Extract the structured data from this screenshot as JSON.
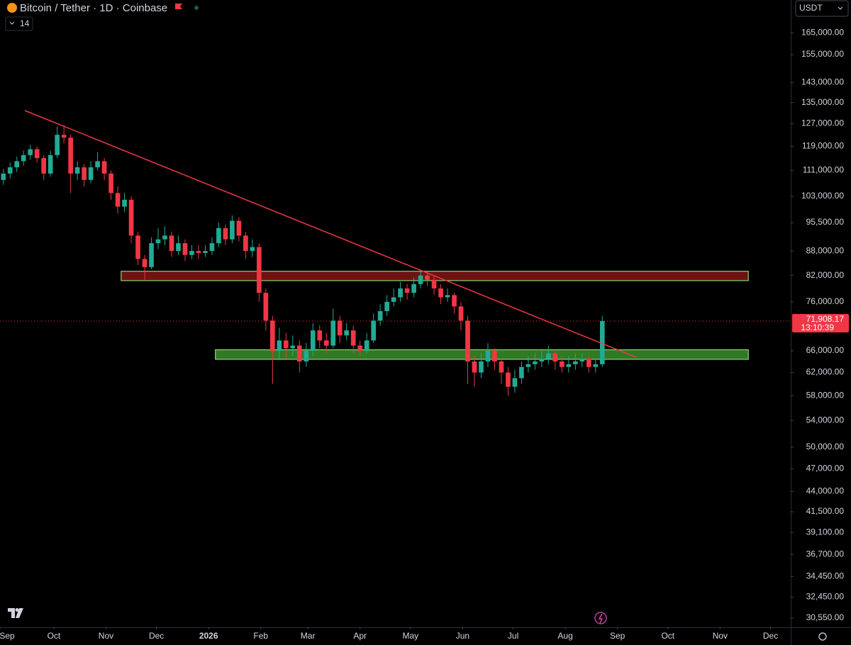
{
  "header": {
    "symbol": "Bitcoin / Tether · 1D · Coinbase",
    "indicator_count": "14",
    "currency": "USDT"
  },
  "chart_data": {
    "type": "candlestick",
    "log_scale": true,
    "xlim": [
      -0.5,
      117
    ],
    "ylim": [
      29750,
      181400
    ],
    "xticks": [
      {
        "value": -0.5,
        "label": "Sep"
      },
      {
        "value": 7.5,
        "label": "Oct"
      },
      {
        "value": 15.25,
        "label": "Nov"
      },
      {
        "value": 22.75,
        "label": "Dec"
      },
      {
        "value": 30.5,
        "label": "2026"
      },
      {
        "value": 38.25,
        "label": "Feb"
      },
      {
        "value": 45.25,
        "label": "Mar"
      },
      {
        "value": 53,
        "label": "Apr"
      },
      {
        "value": 60.5,
        "label": "May"
      },
      {
        "value": 68.25,
        "label": "Jun"
      },
      {
        "value": 75.75,
        "label": "Jul"
      },
      {
        "value": 83.5,
        "label": "Aug"
      },
      {
        "value": 91.25,
        "label": "Sep"
      },
      {
        "value": 98.75,
        "label": "Oct"
      },
      {
        "value": 106.5,
        "label": "Nov"
      },
      {
        "value": 114,
        "label": "Dec"
      }
    ],
    "yticks": [
      {
        "value": 165000,
        "label": "165,000.00"
      },
      {
        "value": 155000,
        "label": "155,000.00"
      },
      {
        "value": 143000,
        "label": "143,000.00"
      },
      {
        "value": 135000,
        "label": "135,000.00"
      },
      {
        "value": 127000,
        "label": "127,000.00"
      },
      {
        "value": 119000,
        "label": "119,000.00"
      },
      {
        "value": 111000,
        "label": "111,000.00"
      },
      {
        "value": 103000,
        "label": "103,000.00"
      },
      {
        "value": 95500,
        "label": "95,500.00"
      },
      {
        "value": 88000,
        "label": "88,000.00"
      },
      {
        "value": 82000,
        "label": "82,000.00"
      },
      {
        "value": 76000,
        "label": "76,000.00"
      },
      {
        "value": 66000,
        "label": "66,000.00"
      },
      {
        "value": 62000,
        "label": "62,000.00"
      },
      {
        "value": 58000,
        "label": "58,000.00"
      },
      {
        "value": 54000,
        "label": "54,000.00"
      },
      {
        "value": 50000,
        "label": "50,000.00"
      },
      {
        "value": 47000,
        "label": "47,000.00"
      },
      {
        "value": 44000,
        "label": "44,000.00"
      },
      {
        "value": 41500,
        "label": "41,500.00"
      },
      {
        "value": 39100,
        "label": "39,100.00"
      },
      {
        "value": 36700,
        "label": "36,700.00"
      },
      {
        "value": 34450,
        "label": "34,450.00"
      },
      {
        "value": 32450,
        "label": "32,450.00"
      },
      {
        "value": 30550,
        "label": "30,550.00"
      }
    ],
    "up_color": "#22ab94",
    "down_color": "#f23645",
    "open": [
      108000,
      110000,
      112000,
      114000,
      116000,
      118000,
      115000,
      110000,
      116000,
      123000,
      122000,
      110000,
      112000,
      108000,
      112000,
      114000,
      110000,
      104000,
      100000,
      102000,
      92000,
      86000,
      84000,
      90000,
      91000,
      92000,
      88000,
      90000,
      87000,
      88000,
      87500,
      88000,
      90000,
      94000,
      91000,
      96000,
      92000,
      88000,
      89000,
      78000,
      72000,
      66000,
      68000,
      66500,
      67000,
      64000,
      66000,
      70000,
      68000,
      67000,
      72000,
      69000,
      70000,
      67000,
      66000,
      68000,
      72000,
      74000,
      76000,
      77000,
      79000,
      78000,
      80000,
      82000,
      81000,
      79000,
      77000,
      77500,
      75000,
      72000,
      64000,
      62000,
      64000,
      66000,
      64000,
      62000,
      59500,
      61000,
      63000,
      63500,
      64000,
      64500,
      65500,
      64000,
      63000,
      63500,
      64000,
      64500,
      63000,
      63500
    ],
    "high": [
      111500,
      113500,
      115500,
      117500,
      119500,
      119000,
      116000,
      117500,
      126000,
      126500,
      123000,
      114000,
      113000,
      114000,
      117000,
      115000,
      111000,
      106000,
      104000,
      103000,
      93000,
      87000,
      91500,
      94000,
      94500,
      93000,
      92000,
      91000,
      89500,
      89500,
      89500,
      91500,
      95500,
      95000,
      97500,
      97000,
      93000,
      91000,
      90000,
      79000,
      73000,
      70500,
      69500,
      69000,
      68000,
      67500,
      71500,
      71000,
      69500,
      74500,
      73000,
      71500,
      71000,
      68000,
      69500,
      73500,
      75500,
      77500,
      79000,
      80500,
      80000,
      81500,
      83000,
      83000,
      82000,
      80000,
      79000,
      78000,
      76000,
      73000,
      65000,
      65500,
      67500,
      66500,
      64500,
      63000,
      62500,
      64000,
      65000,
      65500,
      66000,
      67000,
      66000,
      65000,
      65000,
      65500,
      65500,
      65000,
      64500,
      73000
    ],
    "low": [
      106500,
      108500,
      110500,
      112500,
      114500,
      113500,
      108000,
      109000,
      115000,
      120000,
      104000,
      108000,
      106000,
      107000,
      111000,
      108000,
      102000,
      98000,
      98500,
      90000,
      84500,
      81000,
      83500,
      88500,
      89500,
      86500,
      87000,
      85500,
      86000,
      86000,
      86500,
      87000,
      89000,
      89500,
      90000,
      90500,
      86000,
      86500,
      76000,
      70000,
      60000,
      64500,
      64500,
      65000,
      62000,
      63000,
      65000,
      66500,
      65500,
      66500,
      67500,
      68000,
      65500,
      65000,
      65500,
      67500,
      71000,
      73000,
      75000,
      76000,
      76500,
      77000,
      79000,
      79500,
      77500,
      75500,
      76000,
      73500,
      70000,
      60000,
      59500,
      61000,
      63000,
      62500,
      60000,
      58000,
      58500,
      60000,
      62000,
      62500,
      63000,
      63500,
      62500,
      62000,
      62000,
      62500,
      63000,
      62000,
      62000,
      63000
    ],
    "close": [
      110000,
      112000,
      114000,
      116000,
      118000,
      115000,
      110000,
      116000,
      123000,
      122000,
      110000,
      112000,
      108000,
      112000,
      114000,
      110000,
      104000,
      100000,
      102000,
      92000,
      86000,
      84000,
      90000,
      91000,
      92000,
      88000,
      90000,
      87000,
      88000,
      87500,
      88000,
      90000,
      94000,
      91000,
      96000,
      92000,
      88000,
      89000,
      78000,
      72000,
      66000,
      68000,
      66500,
      67000,
      64000,
      66000,
      70000,
      68000,
      67000,
      72000,
      69000,
      70000,
      67000,
      66000,
      68000,
      72000,
      74000,
      76000,
      77000,
      79000,
      78000,
      80000,
      82000,
      81000,
      79000,
      77000,
      77500,
      75000,
      72000,
      64000,
      62000,
      64000,
      66000,
      64000,
      62000,
      59500,
      61000,
      63000,
      63500,
      64000,
      64500,
      65500,
      64000,
      63000,
      63500,
      64000,
      64500,
      63000,
      63500,
      71908.17
    ],
    "last_price": {
      "value": 71908.17,
      "label": "71,908.17",
      "countdown": "13:10:39",
      "color": "#f23645"
    },
    "trendline": {
      "x": [
        3.2,
        94.1
      ],
      "y": [
        131900,
        64750
      ],
      "color": "#f23645"
    },
    "zones": [
      {
        "x": [
          17.5,
          110.7
        ],
        "y": [
          80800,
          83000
        ],
        "fill": "#6e1212",
        "stroke": "#8fd46f"
      },
      {
        "x": [
          31.5,
          110.7
        ],
        "y": [
          64400,
          66200
        ],
        "fill": "#2f7a22",
        "stroke": "#8fd46f"
      }
    ]
  }
}
